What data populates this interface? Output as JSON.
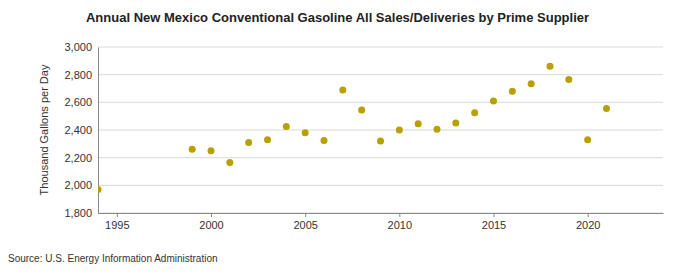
{
  "chart_data": {
    "type": "scatter",
    "title": "Annual New Mexico Conventional Gasoline All Sales/Deliveries by Prime Supplier",
    "y_label": "Thousand Gallons per Day",
    "source": "Source: U.S. Energy Information Administration",
    "x": [
      1994,
      1999,
      2000,
      2001,
      2002,
      2003,
      2004,
      2005,
      2006,
      2007,
      2008,
      2009,
      2010,
      2011,
      2012,
      2013,
      2014,
      2015,
      2016,
      2017,
      2018,
      2019,
      2020,
      2021
    ],
    "values": [
      1970,
      2260,
      2250,
      2165,
      2310,
      2330,
      2425,
      2380,
      2325,
      2690,
      2545,
      2320,
      2400,
      2445,
      2405,
      2450,
      2525,
      2610,
      2680,
      2735,
      2860,
      2765,
      2330,
      2555
    ],
    "color": "#b8a000",
    "marker": "circle",
    "xlim": [
      1994,
      2024
    ],
    "xticks": [
      1995,
      2000,
      2005,
      2010,
      2015,
      2020
    ],
    "ylim": [
      1800,
      3000
    ],
    "yticks": [
      {
        "value": 1800,
        "label": "1,800"
      },
      {
        "value": 2000,
        "label": "2,000"
      },
      {
        "value": 2200,
        "label": "2,200"
      },
      {
        "value": 2400,
        "label": "2,400"
      },
      {
        "value": 2600,
        "label": "2,600"
      },
      {
        "value": 2800,
        "label": "2,800"
      },
      {
        "value": 3000,
        "label": "3,000"
      }
    ],
    "grid": true
  }
}
